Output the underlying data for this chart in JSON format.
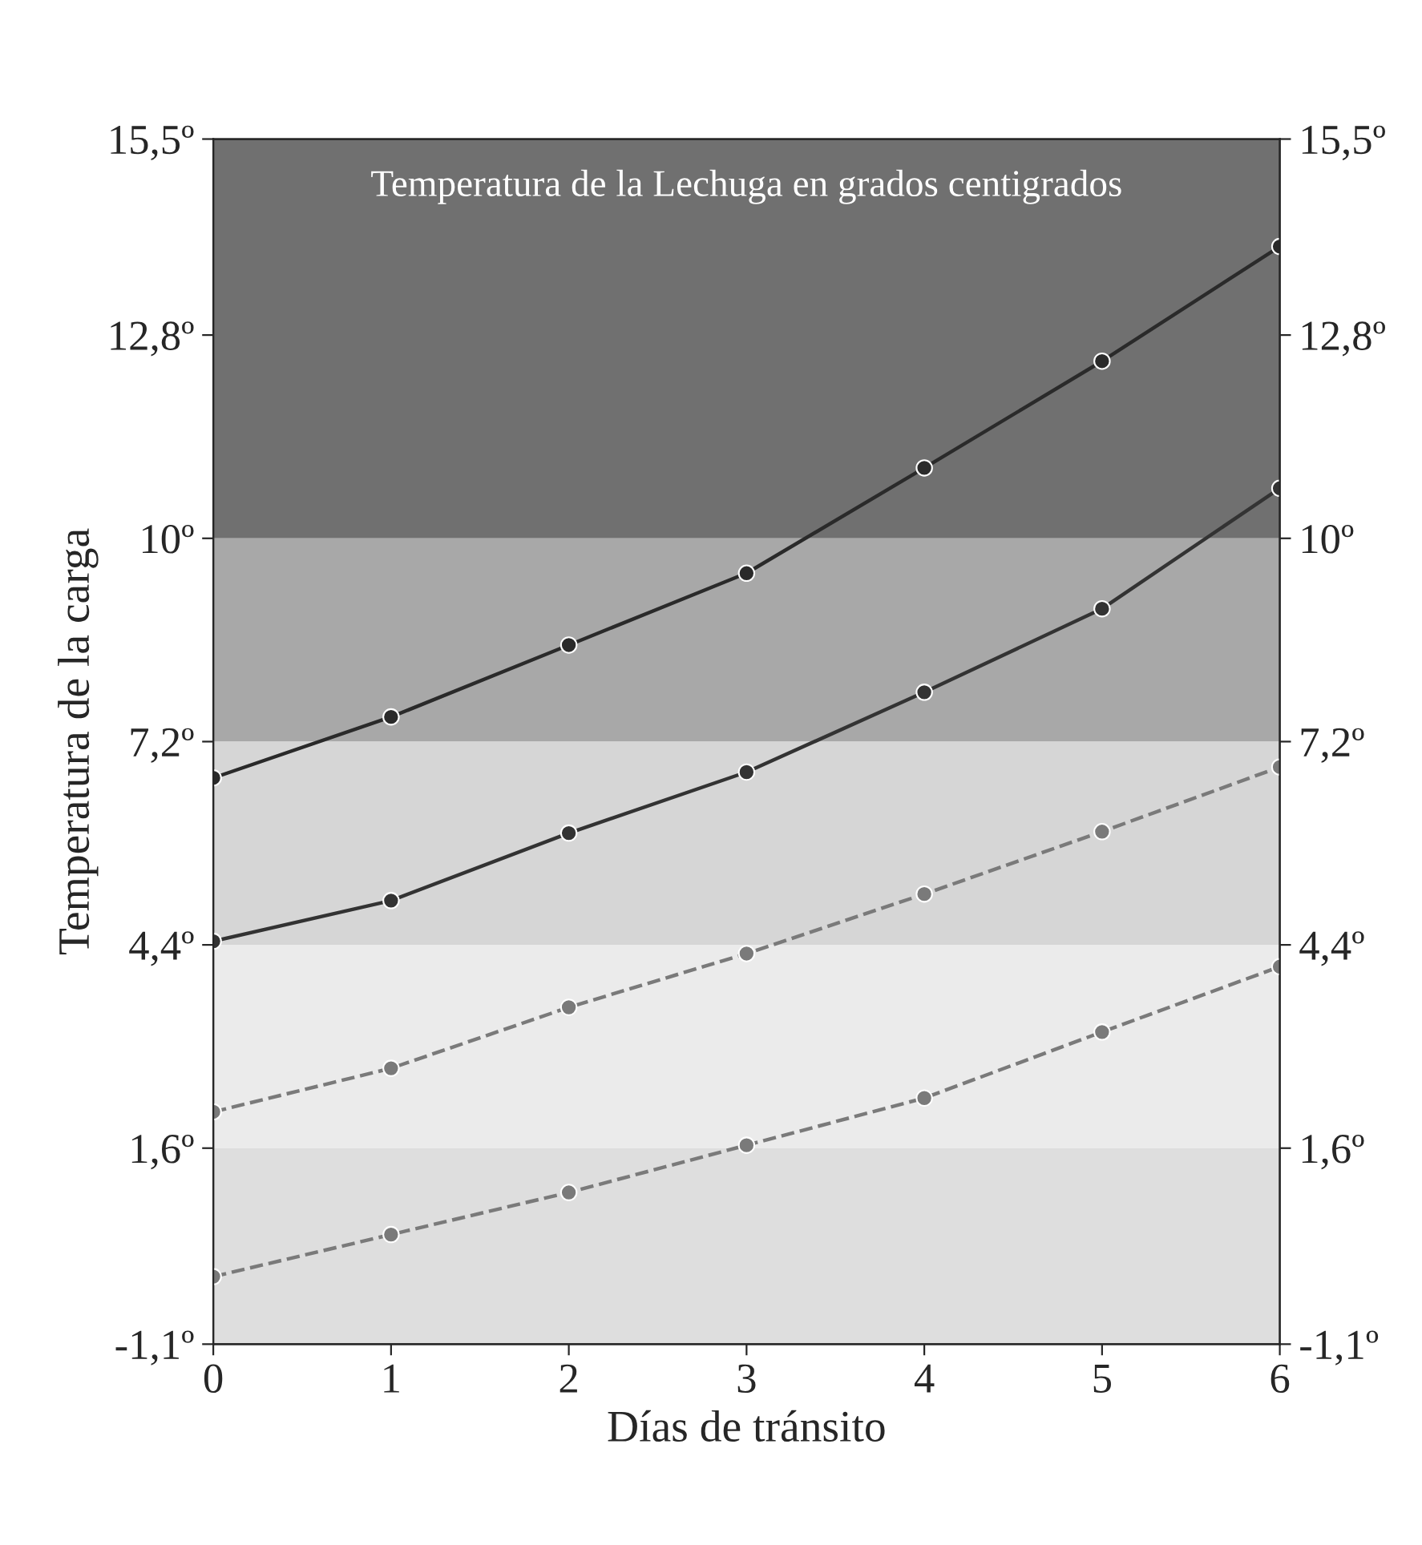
{
  "chart_data": {
    "type": "line",
    "xlabel": "Días de tránsito",
    "ylabel": "Temperatura de la carga",
    "x": [
      0,
      1,
      2,
      3,
      4,
      5,
      6
    ],
    "series": [
      {
        "color": "#2a2a2a",
        "values": [
          6.7,
          7.54,
          8.53,
          9.52,
          10.97,
          12.44,
          14.02
        ],
        "line_style": "solid"
      },
      {
        "color": "#333333",
        "values": [
          4.45,
          5.01,
          5.94,
          6.78,
          7.88,
          9.03,
          10.69
        ],
        "line_style": "solid"
      },
      {
        "color": "#7a7a7a",
        "values": [
          2.1,
          2.7,
          3.54,
          4.28,
          5.1,
          5.96,
          6.85
        ],
        "line_style": "dashed"
      },
      {
        "color": "#7a7a7a",
        "values": [
          -0.17,
          0.41,
          0.99,
          1.64,
          2.29,
          3.2,
          4.1
        ],
        "line_style": "dashed"
      }
    ],
    "marker": "circle",
    "xlim": [
      0,
      6
    ],
    "xticks": [
      0,
      1,
      2,
      3,
      4,
      5,
      6
    ],
    "ylim": [
      -1.1,
      15.5
    ],
    "yticks": [
      {
        "value": -1.1,
        "label": "-1,1º"
      },
      {
        "value": 1.6,
        "label": "1,6º"
      },
      {
        "value": 4.4,
        "label": "4,4º"
      },
      {
        "value": 7.2,
        "label": "7,2º"
      },
      {
        "value": 10,
        "label": "10º"
      },
      {
        "value": 12.8,
        "label": "12,8º"
      },
      {
        "value": 15.5,
        "label": "15,5º"
      }
    ],
    "y2lim": [
      -1.1,
      15.5
    ],
    "y2ticks": [
      {
        "value": -1.1,
        "label": "-1,1º"
      },
      {
        "value": 1.6,
        "label": "1,6º"
      },
      {
        "value": 4.4,
        "label": "4,4º"
      },
      {
        "value": 7.2,
        "label": "7,2º"
      },
      {
        "value": 10,
        "label": "10º"
      },
      {
        "value": 12.8,
        "label": "12,8º"
      },
      {
        "value": 15.5,
        "label": "15,5º"
      }
    ],
    "bands": [
      {
        "axis": "y",
        "from": 10,
        "to": 15.5,
        "color": "#707070",
        "label": "Temperatura de la Lechuga en grados centigrados"
      },
      {
        "axis": "y",
        "from": 7.2,
        "to": 10,
        "color": "#a8a8a8"
      },
      {
        "axis": "y",
        "from": 4.4,
        "to": 7.2,
        "color": "#d6d6d6"
      },
      {
        "axis": "y",
        "from": 1.6,
        "to": 4.4,
        "color": "#ebebeb"
      },
      {
        "axis": "y",
        "from": -1.1,
        "to": 1.6,
        "color": "#dedede"
      }
    ],
    "grid": false
  }
}
